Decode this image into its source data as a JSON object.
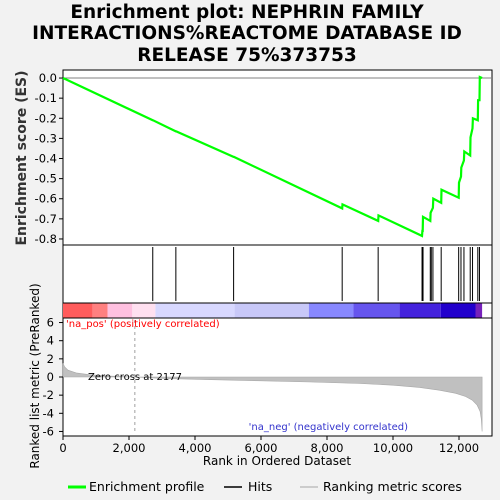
{
  "chart_data": {
    "type": "line",
    "title_lines": [
      "Enrichment plot: NEPHRIN FAMILY",
      "INTERACTIONS%REACTOME DATABASE ID",
      "RELEASE 75%373753"
    ],
    "es_panel": {
      "ylabel": "Enrichment score (ES)",
      "ylim": [
        -0.83,
        0.04
      ],
      "yticks": [
        "0.0",
        "-0.1",
        "-0.2",
        "-0.3",
        "-0.4",
        "-0.5",
        "-0.6",
        "-0.7",
        "-0.8"
      ],
      "series": [
        {
          "name": "Enrichment profile",
          "color": "#00ff00",
          "x": [
            0,
            2720,
            2730,
            3420,
            3430,
            5170,
            5180,
            8460,
            8470,
            9550,
            9560,
            10880,
            10890,
            10900,
            10910,
            11130,
            11140,
            11210,
            11220,
            11460,
            11470,
            11990,
            12000,
            12060,
            12070,
            12150,
            12160,
            12340,
            12350,
            12410,
            12420,
            12570,
            12580,
            12620,
            12630,
            12700
          ],
          "y": [
            0.0,
            -0.21,
            -0.21,
            -0.265,
            -0.265,
            -0.392,
            -0.392,
            -0.648,
            -0.628,
            -0.71,
            -0.683,
            -0.785,
            -0.76,
            -0.76,
            -0.69,
            -0.71,
            -0.67,
            -0.645,
            -0.6,
            -0.62,
            -0.555,
            -0.595,
            -0.52,
            -0.49,
            -0.445,
            -0.41,
            -0.365,
            -0.385,
            -0.295,
            -0.25,
            -0.2,
            -0.21,
            -0.11,
            -0.11,
            0.005,
            0.0
          ]
        }
      ]
    },
    "hits": {
      "name": "Hits",
      "positions": [
        2720,
        3420,
        5170,
        8460,
        9550,
        10880,
        10900,
        10910,
        11130,
        11160,
        11210,
        11460,
        11990,
        12060,
        12150,
        12340,
        12410,
        12570,
        12620
      ]
    },
    "heatmap_bar": {
      "colors": [
        "#ff5c5c",
        "#ff8080",
        "#ffc0e0",
        "#ffe0f0",
        "#d8d8ff",
        "#c8c8f8",
        "#8888ff",
        "#6655ee",
        "#4422dd",
        "#2200cc",
        "#7722bb"
      ],
      "bounds": [
        0,
        900,
        1350,
        2100,
        2800,
        5200,
        7450,
        8800,
        10200,
        11450,
        12500,
        12700
      ]
    },
    "metric_panel": {
      "ylabel": "Ranked list metric (PreRanked)",
      "ylim": [
        -6.5,
        6.5
      ],
      "yticks": [
        "6",
        "4",
        "2",
        "0",
        "-2",
        "-4",
        "-6"
      ],
      "zero_cross": 2177,
      "zero_cross_label": "Zero cross at 2177",
      "pos_label": "'na_pos' (positively correlated)",
      "neg_label": "'na_neg' (negatively correlated)",
      "curve_x": [
        0,
        50,
        150,
        400,
        800,
        1300,
        1800,
        2177,
        3000,
        4500,
        6000,
        7500,
        9000,
        10000,
        10800,
        11400,
        11900,
        12200,
        12400,
        12550,
        12640,
        12680,
        12700
      ],
      "curve_y": [
        1.5,
        1.1,
        0.75,
        0.45,
        0.25,
        0.12,
        0.04,
        0.0,
        -0.15,
        -0.3,
        -0.42,
        -0.55,
        -0.72,
        -0.9,
        -1.15,
        -1.45,
        -1.8,
        -2.15,
        -2.55,
        -3.1,
        -3.8,
        -4.7,
        -6.0
      ]
    },
    "xaxis": {
      "xlabel": "Rank in Ordered Dataset",
      "xlim": [
        0,
        13000
      ],
      "ticks": [
        0,
        2000,
        4000,
        6000,
        8000,
        10000,
        12000
      ],
      "tick_labels": [
        "0",
        "2,000",
        "4,000",
        "6,000",
        "8,000",
        "10,000",
        "12,000"
      ]
    },
    "legend": [
      {
        "label": "Enrichment profile",
        "color": "#00ff00"
      },
      {
        "label": "Hits",
        "color": "#000000"
      },
      {
        "label": "Ranking metric scores",
        "color": "#c0c0c0"
      }
    ]
  }
}
